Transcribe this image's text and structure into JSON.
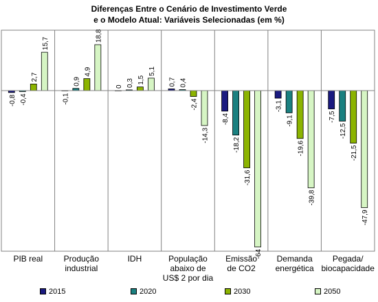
{
  "chart_data": {
    "type": "bar",
    "title": [
      "Diferenças Entre o Cenário de Investimento Verde",
      "e o Modelo Atual: Variáveis Selecionadas (em %)"
    ],
    "categories": [
      [
        "PIB real"
      ],
      [
        "Produção",
        "industrial"
      ],
      [
        "IDH"
      ],
      [
        "População",
        "abaixo de",
        "US$ 2 por dia"
      ],
      [
        "Emissão",
        "de CO2"
      ],
      [
        "Demanda",
        "energética"
      ],
      [
        "Pegada/",
        "biocapacidade"
      ]
    ],
    "series": [
      {
        "name": "2015",
        "color": "#1a1a80",
        "values": [
          -0.8,
          -0.1,
          0,
          0.7,
          -8.4,
          -3.1,
          -7.5
        ],
        "labels": [
          "-0,8",
          "-0,1",
          "0",
          "0,7",
          "-8,4",
          "-3,1",
          "-7,5"
        ]
      },
      {
        "name": "2020",
        "color": "#1a8080",
        "values": [
          -0.4,
          0.9,
          0.3,
          0.4,
          -18.2,
          -9.1,
          -12.5
        ],
        "labels": [
          "-0,4",
          "0,9",
          "0,3",
          "0,4",
          "-18,2",
          "-9,1",
          "-12,5"
        ]
      },
      {
        "name": "2030",
        "color": "#8cb400",
        "values": [
          2.7,
          4.9,
          1.5,
          -2.4,
          -31.6,
          -19.6,
          -21.5
        ],
        "labels": [
          "2,7",
          "4,9",
          "1,5",
          "-2,4",
          "-31,6",
          "-19,6",
          "-21,5"
        ]
      },
      {
        "name": "2050",
        "color": "#d6f5c4",
        "values": [
          15.7,
          18.8,
          5.1,
          -14.3,
          -64,
          -39.8,
          -47.9
        ],
        "labels": [
          "15,7",
          "18,8",
          "5,1",
          "-14,3",
          "-64",
          "-39,8",
          "-47,9"
        ]
      }
    ],
    "ylim": [
      -70,
      20
    ],
    "grid": false,
    "legend": "bottom"
  }
}
